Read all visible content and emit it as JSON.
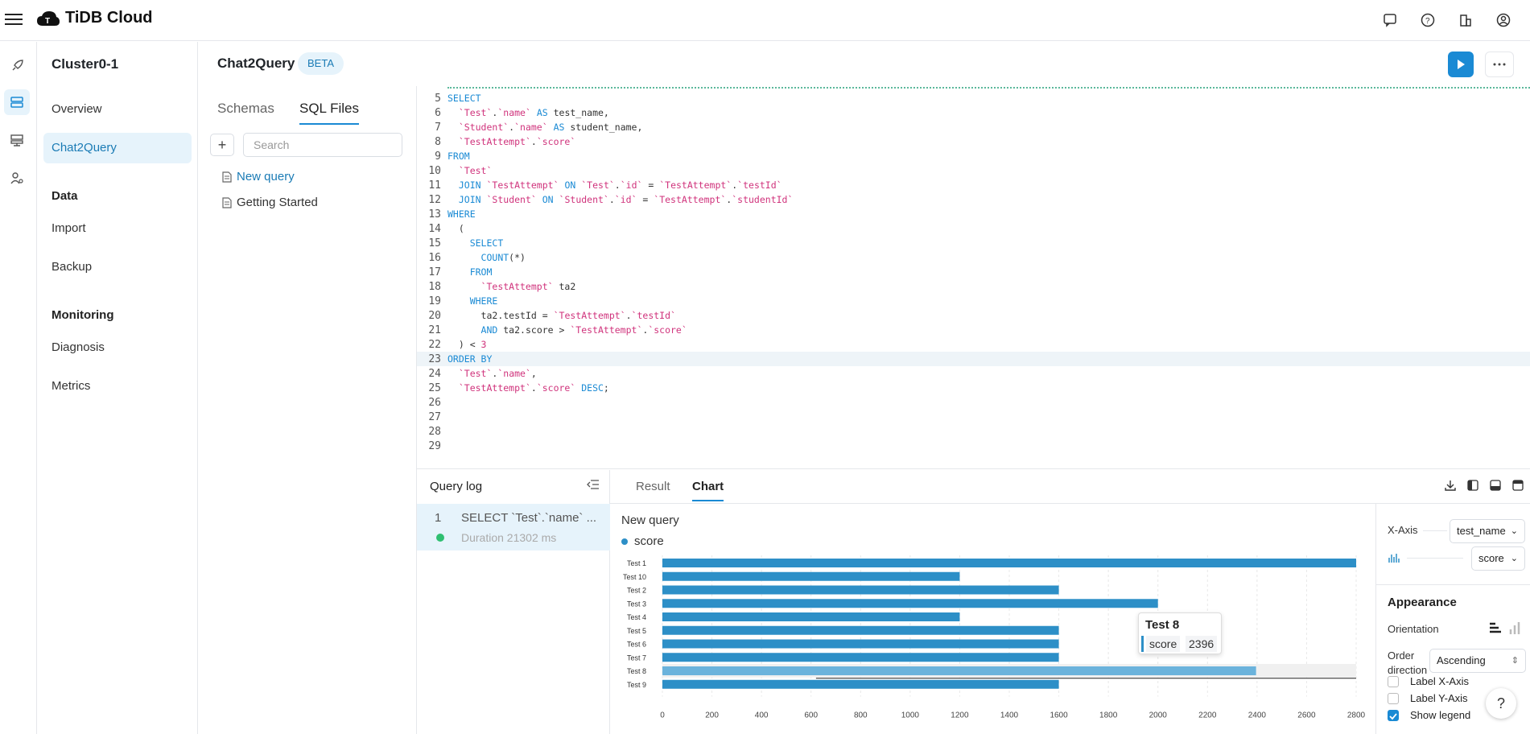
{
  "app": {
    "title": "TiDB Cloud"
  },
  "cluster": {
    "name": "Cluster0-1"
  },
  "nav": {
    "overview": "Overview",
    "chat2query": "Chat2Query",
    "data_heading": "Data",
    "import": "Import",
    "backup": "Backup",
    "monitoring_heading": "Monitoring",
    "diagnosis": "Diagnosis",
    "metrics": "Metrics"
  },
  "page": {
    "title": "Chat2Query",
    "badge": "BETA"
  },
  "files_panel": {
    "tabs": [
      "Schemas",
      "SQL Files"
    ],
    "add_label": "+",
    "search_placeholder": "Search",
    "files": [
      "New query",
      "Getting Started"
    ]
  },
  "editor": {
    "lines": [
      {
        "n": "5",
        "text": "SELECT"
      },
      {
        "n": "6",
        "text": "  `Test`.`name` AS test_name,"
      },
      {
        "n": "7",
        "text": "  `Student`.`name` AS student_name,"
      },
      {
        "n": "8",
        "text": "  `TestAttempt`.`score`"
      },
      {
        "n": "9",
        "text": "FROM"
      },
      {
        "n": "10",
        "text": "  `Test`"
      },
      {
        "n": "11",
        "text": "  JOIN `TestAttempt` ON `Test`.`id` = `TestAttempt`.`testId`"
      },
      {
        "n": "12",
        "text": "  JOIN `Student` ON `Student`.`id` = `TestAttempt`.`studentId`"
      },
      {
        "n": "13",
        "text": "WHERE"
      },
      {
        "n": "14",
        "text": "  ("
      },
      {
        "n": "15",
        "text": "    SELECT"
      },
      {
        "n": "16",
        "text": "      COUNT(*)"
      },
      {
        "n": "17",
        "text": "    FROM"
      },
      {
        "n": "18",
        "text": "      `TestAttempt` ta2"
      },
      {
        "n": "19",
        "text": "    WHERE"
      },
      {
        "n": "20",
        "text": "      ta2.testId = `TestAttempt`.`testId`"
      },
      {
        "n": "21",
        "text": "      AND ta2.score > `TestAttempt`.`score`"
      },
      {
        "n": "22",
        "text": "  ) < 3"
      },
      {
        "n": "23",
        "text": "ORDER BY"
      },
      {
        "n": "24",
        "text": "  `Test`.`name`,"
      },
      {
        "n": "25",
        "text": "  `TestAttempt`.`score` DESC;"
      },
      {
        "n": "26",
        "text": ""
      },
      {
        "n": "27",
        "text": ""
      },
      {
        "n": "28",
        "text": ""
      },
      {
        "n": "29",
        "text": ""
      }
    ],
    "highlighted_line": "23"
  },
  "query_log": {
    "title": "Query log",
    "entries": [
      {
        "index": "1",
        "sql": "SELECT `Test`.`name` ...",
        "duration": "Duration 21302 ms",
        "status_color": "#2fbf71"
      }
    ]
  },
  "results": {
    "tabs": [
      "Result",
      "Chart"
    ],
    "active_tab": "Chart"
  },
  "chart_data": {
    "type": "bar",
    "orientation": "horizontal",
    "title": "New query",
    "legend": [
      {
        "name": "score",
        "color": "#2d8fc7"
      }
    ],
    "categories": [
      "Test 1",
      "Test 10",
      "Test 2",
      "Test 3",
      "Test 4",
      "Test 5",
      "Test 6",
      "Test 7",
      "Test 8",
      "Test 9"
    ],
    "series": [
      {
        "name": "score",
        "values": [
          2800,
          1200,
          1600,
          2000,
          1200,
          1600,
          1600,
          1600,
          2396,
          1600
        ]
      }
    ],
    "x_ticks": [
      "0",
      "200",
      "400",
      "600",
      "800",
      "1000",
      "1200",
      "1400",
      "1600",
      "1800",
      "2000",
      "2200",
      "2400",
      "2600",
      "2800"
    ],
    "xlim": [
      0,
      2800
    ],
    "grid": true,
    "tooltip": {
      "title": "Test 8",
      "label": "score",
      "value": "2396"
    }
  },
  "chart_settings": {
    "x_axis_label": "X-Axis",
    "x_axis_value": "test_name",
    "y_axis_value": "score",
    "appearance": "Appearance",
    "orientation_label": "Orientation",
    "order_label": "Order direction",
    "order_value": "Ascending",
    "checkboxes": [
      {
        "label": "Label X-Axis",
        "checked": false
      },
      {
        "label": "Label Y-Axis",
        "checked": false
      },
      {
        "label": "Show legend",
        "checked": true
      }
    ]
  },
  "help": {
    "label": "?"
  },
  "colors": {
    "accent": "#1a8ad4",
    "bar": "#2d8fc7",
    "bar_highlight": "#6bb3dc"
  }
}
